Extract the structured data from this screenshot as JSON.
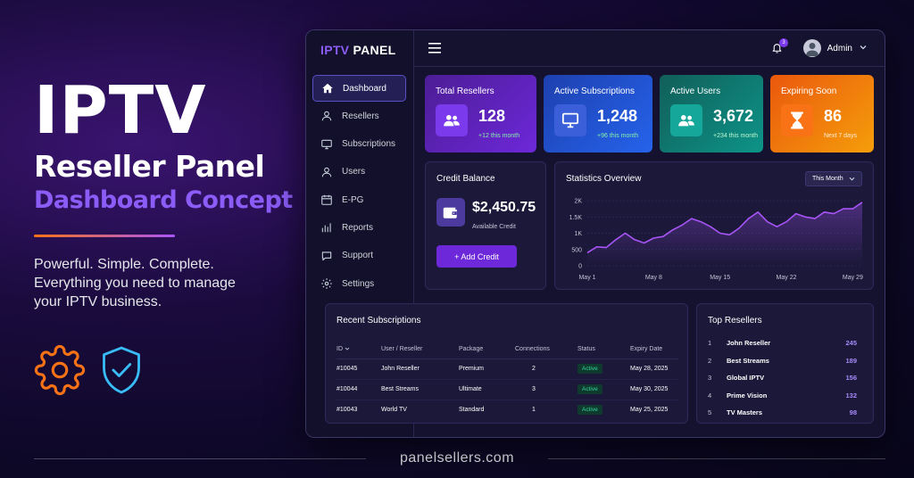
{
  "promo": {
    "title": "IPTV",
    "subtitle": "Reseller Panel",
    "concept": "Dashboard Concept",
    "tagline": [
      "Powerful. Simple. Complete.",
      "Everything you need to manage",
      "your IPTV business."
    ]
  },
  "footer": {
    "site": "panelsellers.com"
  },
  "app": {
    "logo_a": "IPTV",
    "logo_b": "PANEL",
    "notifications": "3",
    "user": "Admin"
  },
  "sidebar": {
    "items": [
      {
        "label": "Dashboard",
        "icon": "home-icon"
      },
      {
        "label": "Resellers",
        "icon": "user-icon"
      },
      {
        "label": "Subscriptions",
        "icon": "monitor-icon"
      },
      {
        "label": "Users",
        "icon": "user-icon"
      },
      {
        "label": "E-PG",
        "icon": "calendar-icon"
      },
      {
        "label": "Reports",
        "icon": "bar-chart-icon"
      },
      {
        "label": "Support",
        "icon": "chat-icon"
      },
      {
        "label": "Settings",
        "icon": "gear-icon"
      }
    ]
  },
  "stats": [
    {
      "title": "Total Resellers",
      "value": "128",
      "sub": "+12 this month",
      "icon": "users-icon",
      "color": "#5b21b6"
    },
    {
      "title": "Active Subscriptions",
      "value": "1,248",
      "sub": "+96 this month",
      "icon": "monitor-icon",
      "color": "#1d4ed8"
    },
    {
      "title": "Active Users",
      "value": "3,672",
      "sub": "+234 this month",
      "icon": "users-icon",
      "color": "#0f766e"
    },
    {
      "title": "Expiring Soon",
      "value": "86",
      "sub": "Next 7 days",
      "icon": "hourglass-icon",
      "color": "#ea580c"
    }
  ],
  "credit": {
    "title": "Credit Balance",
    "value": "$2,450.75",
    "sub": "Available Credit",
    "button": "+ Add Credit"
  },
  "stats_overview": {
    "title": "Statistics Overview",
    "range": "This Month"
  },
  "chart_data": {
    "type": "area",
    "x": [
      "May 1",
      "May 2",
      "May 3",
      "May 4",
      "May 5",
      "May 6",
      "May 7",
      "May 8",
      "May 9",
      "May 10",
      "May 11",
      "May 12",
      "May 13",
      "May 14",
      "May 15",
      "May 16",
      "May 17",
      "May 18",
      "May 19",
      "May 20",
      "May 21",
      "May 22",
      "May 23",
      "May 24",
      "May 25",
      "May 26",
      "May 27",
      "May 28",
      "May 29",
      "May 30"
    ],
    "values": [
      400,
      580,
      560,
      800,
      1000,
      800,
      700,
      850,
      900,
      1100,
      1250,
      1450,
      1350,
      1200,
      1000,
      950,
      1150,
      1450,
      1650,
      1350,
      1200,
      1350,
      1600,
      1500,
      1450,
      1650,
      1600,
      1750,
      1750,
      1950
    ],
    "xticks": [
      "May 1",
      "May 8",
      "May 15",
      "May 22",
      "May 29"
    ],
    "yticks": [
      "0",
      "500",
      "1K",
      "1.5K",
      "2K"
    ],
    "ylim": [
      0,
      2000
    ],
    "grid": true,
    "color": "#a855f7"
  },
  "recent": {
    "title": "Recent Subscriptions",
    "headers": [
      "ID",
      "User / Reseller",
      "Package",
      "Connections",
      "Status",
      "Expiry Date"
    ],
    "rows": [
      [
        "#10045",
        "John Reseller",
        "Premium",
        "2",
        "Active",
        "May 28, 2025"
      ],
      [
        "#10044",
        "Best Streams",
        "Ultimate",
        "3",
        "Active",
        "May 30, 2025"
      ],
      [
        "#10043",
        "World TV",
        "Standard",
        "1",
        "Active",
        "May 25, 2025"
      ]
    ]
  },
  "top": {
    "title": "Top Resellers",
    "rows": [
      {
        "rank": "1",
        "name": "John Reseller",
        "count": "245"
      },
      {
        "rank": "2",
        "name": "Best Streams",
        "count": "189"
      },
      {
        "rank": "3",
        "name": "Global IPTV",
        "count": "156"
      },
      {
        "rank": "4",
        "name": "Prime Vision",
        "count": "132"
      },
      {
        "rank": "5",
        "name": "TV Masters",
        "count": "98"
      }
    ]
  }
}
